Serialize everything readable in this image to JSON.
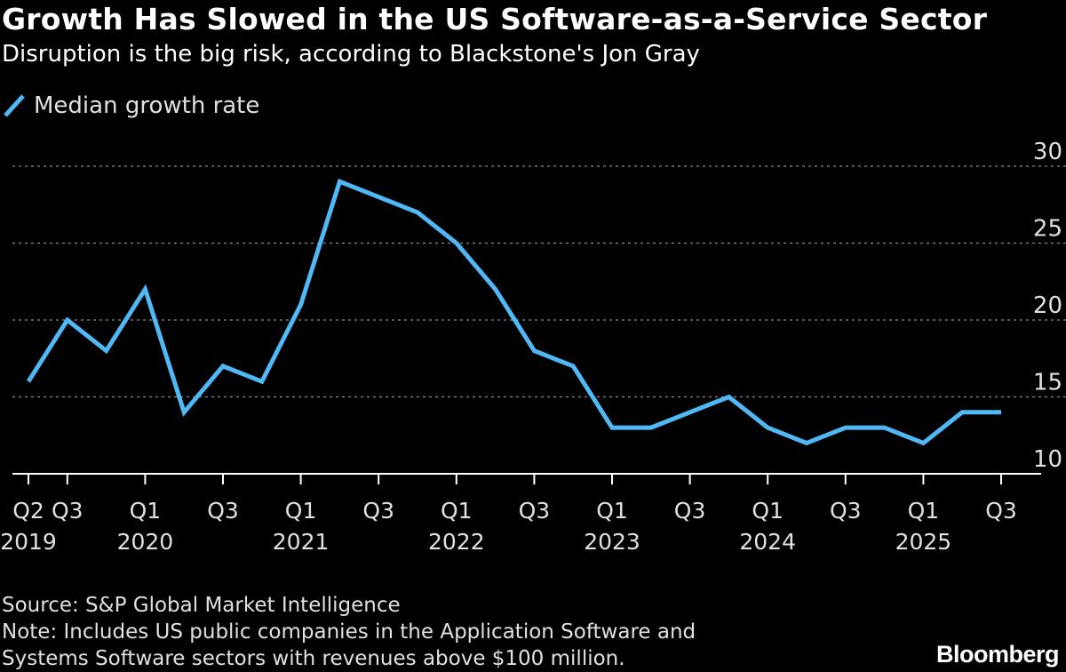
{
  "title": "Growth Has Slowed in the US Software-as-a-Service Sector",
  "subtitle": "Disruption is the big risk, according to Blackstone's Jon Gray",
  "legend": {
    "label": "Median growth rate",
    "color": "#4fb8f5"
  },
  "colors": {
    "background": "#000000",
    "line": "#4fb8f5",
    "grid": "#8a8a8a",
    "text": "#e0e0e0"
  },
  "chart_data": {
    "type": "line",
    "title": "Growth Has Slowed in the US Software-as-a-Service Sector",
    "xlabel": "",
    "ylabel": "",
    "ylim": [
      10,
      30
    ],
    "yticks": [
      10,
      15,
      20,
      25,
      30
    ],
    "grid": true,
    "x": [
      "Q2 2019",
      "Q3 2019",
      "Q4 2019",
      "Q1 2020",
      "Q2 2020",
      "Q3 2020",
      "Q4 2020",
      "Q1 2021",
      "Q2 2021",
      "Q3 2021",
      "Q4 2021",
      "Q1 2022",
      "Q2 2022",
      "Q3 2022",
      "Q4 2022",
      "Q1 2023",
      "Q2 2023",
      "Q3 2023",
      "Q4 2023",
      "Q1 2024",
      "Q2 2024",
      "Q3 2024",
      "Q4 2024",
      "Q1 2025",
      "Q2 2025",
      "Q3 2025"
    ],
    "series": [
      {
        "name": "Median growth rate",
        "values": [
          16,
          20,
          18,
          22,
          14,
          17,
          16,
          21,
          29,
          28,
          27,
          25,
          22,
          18,
          17,
          13,
          13,
          14,
          15,
          13,
          12,
          13,
          13,
          12,
          14,
          14
        ]
      }
    ],
    "xtick_labels": [
      {
        "index": 0,
        "q": "Q2",
        "year": "2019"
      },
      {
        "index": 1,
        "q": "Q3",
        "year": ""
      },
      {
        "index": 3,
        "q": "Q1",
        "year": "2020"
      },
      {
        "index": 5,
        "q": "Q3",
        "year": ""
      },
      {
        "index": 7,
        "q": "Q1",
        "year": "2021"
      },
      {
        "index": 9,
        "q": "Q3",
        "year": ""
      },
      {
        "index": 11,
        "q": "Q1",
        "year": "2022"
      },
      {
        "index": 13,
        "q": "Q3",
        "year": ""
      },
      {
        "index": 15,
        "q": "Q1",
        "year": "2023"
      },
      {
        "index": 17,
        "q": "Q3",
        "year": ""
      },
      {
        "index": 19,
        "q": "Q1",
        "year": "2024"
      },
      {
        "index": 21,
        "q": "Q3",
        "year": ""
      },
      {
        "index": 23,
        "q": "Q1",
        "year": "2025"
      },
      {
        "index": 25,
        "q": "Q3",
        "year": ""
      }
    ]
  },
  "footer": {
    "source": "Source: S&P Global Market Intelligence",
    "note_line1": "Note: Includes US public companies in the Application Software and",
    "note_line2": "Systems Software sectors with revenues above $100 million."
  },
  "brand": "Bloomberg"
}
